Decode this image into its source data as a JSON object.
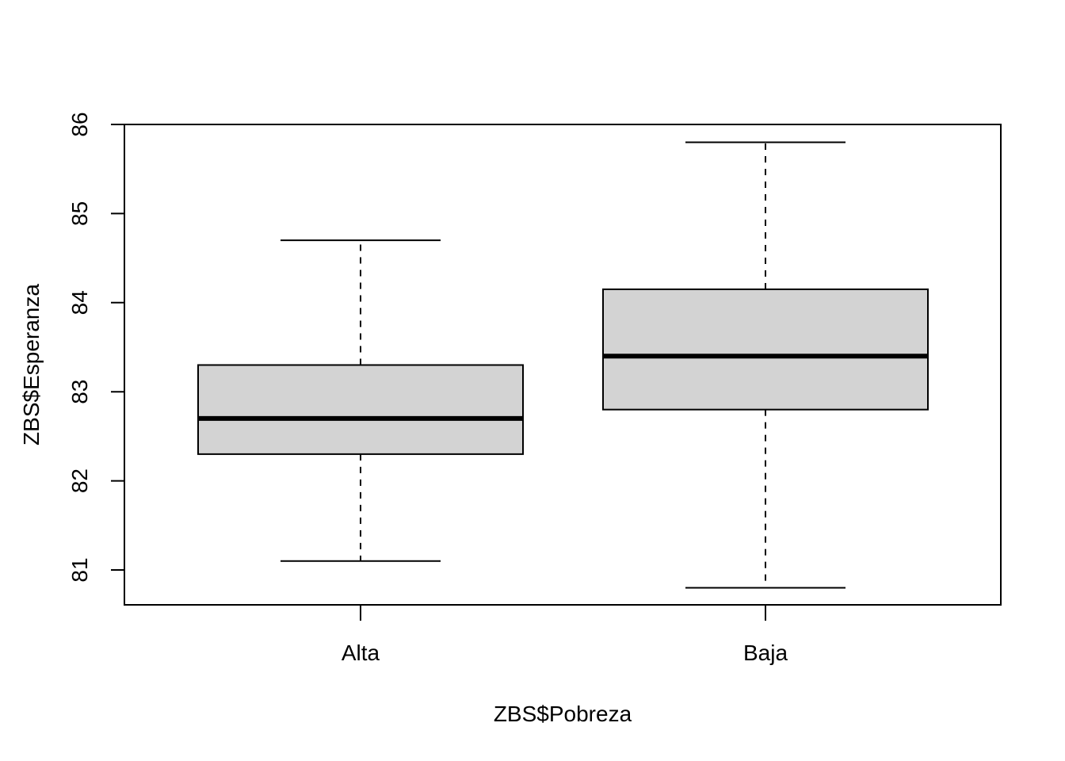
{
  "chart_data": {
    "type": "box",
    "categories": [
      "Alta",
      "Baja"
    ],
    "boxes": [
      {
        "category": "Alta",
        "whisker_low": 81.1,
        "q1": 82.3,
        "median": 82.7,
        "q3": 83.3,
        "whisker_high": 84.7
      },
      {
        "category": "Baja",
        "whisker_low": 80.8,
        "q1": 82.8,
        "median": 83.4,
        "q3": 84.15,
        "whisker_high": 85.8
      }
    ],
    "xlabel": "ZBS$Pobreza",
    "ylabel": "ZBS$Esperanza",
    "yticks": [
      81,
      82,
      83,
      84,
      85,
      86
    ],
    "ylim": [
      80.6,
      86
    ],
    "box_fill": "#d3d3d3",
    "line_color": "#000000"
  }
}
